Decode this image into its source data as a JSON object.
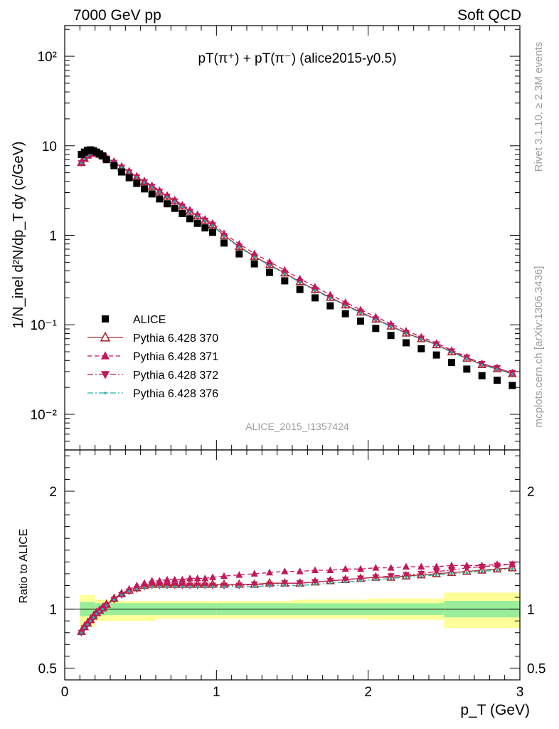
{
  "header": {
    "left": "7000 GeV pp",
    "right": "Soft QCD"
  },
  "side_labels": {
    "rivet": "Rivet 3.1.10, ≥ 2.3M events",
    "mcplots": "mcplots.cern.ch [arXiv:1306.3436]"
  },
  "chart_data": {
    "type": "scatter",
    "title": "pT(π⁺) + pT(π⁻) (alice2015-y0.5)",
    "watermark": "ALICE_2015_I1357424",
    "xlabel": "p_T (GeV)",
    "ylabel": "1/N_inel d²N/dp_T dy (c/GeV)",
    "xlim": [
      0,
      3
    ],
    "ylim": [
      0.004,
      220
    ],
    "yscale": "log",
    "x_ticks": [
      "0",
      "1",
      "2",
      "3"
    ],
    "y_ticks": [
      "10⁻²",
      "10⁻¹",
      "1",
      "10",
      "10²"
    ],
    "legend_position": "left-middle",
    "x": [
      0.11,
      0.13,
      0.15,
      0.17,
      0.19,
      0.21,
      0.23,
      0.25,
      0.275,
      0.325,
      0.375,
      0.425,
      0.475,
      0.525,
      0.575,
      0.625,
      0.675,
      0.725,
      0.775,
      0.825,
      0.875,
      0.925,
      0.975,
      1.05,
      1.15,
      1.25,
      1.35,
      1.45,
      1.55,
      1.65,
      1.75,
      1.85,
      1.95,
      2.05,
      2.15,
      2.25,
      2.35,
      2.45,
      2.55,
      2.65,
      2.75,
      2.85,
      2.95
    ],
    "series": [
      {
        "name": "ALICE",
        "color": "#000000",
        "marker": "square",
        "values": [
          8.0,
          8.5,
          8.9,
          9.0,
          8.8,
          8.5,
          8.1,
          7.7,
          7.0,
          6.0,
          5.1,
          4.4,
          3.8,
          3.3,
          2.9,
          2.55,
          2.25,
          2.0,
          1.75,
          1.53,
          1.36,
          1.21,
          1.08,
          0.82,
          0.62,
          0.48,
          0.385,
          0.31,
          0.248,
          0.2,
          0.163,
          0.133,
          0.11,
          0.091,
          0.076,
          0.063,
          0.054,
          0.046,
          0.038,
          0.032,
          0.027,
          0.024,
          0.021
        ],
        "band_x": [
          0.1,
          0.2,
          0.3,
          0.6,
          1.0,
          1.5,
          2.0,
          2.5,
          3.0
        ],
        "band_stat": [
          [
            0.94,
            1.06
          ],
          [
            0.95,
            1.05
          ],
          [
            0.95,
            1.05
          ],
          [
            0.95,
            1.05
          ],
          [
            0.95,
            1.05
          ],
          [
            0.95,
            1.05
          ],
          [
            0.95,
            1.05
          ],
          [
            0.93,
            1.07
          ]
        ],
        "band_syst": [
          [
            0.85,
            1.12
          ],
          [
            0.9,
            1.08
          ],
          [
            0.9,
            1.07
          ],
          [
            0.92,
            1.07
          ],
          [
            0.92,
            1.07
          ],
          [
            0.92,
            1.08
          ],
          [
            0.91,
            1.09
          ],
          [
            0.84,
            1.14
          ]
        ]
      },
      {
        "name": "Pythia 6.428 370",
        "color": "#a52a2a",
        "marker": "open-triangle-up",
        "line": "solid",
        "ratio": [
          0.81,
          0.85,
          0.88,
          0.91,
          0.94,
          0.97,
          0.99,
          1.01,
          1.04,
          1.09,
          1.13,
          1.16,
          1.18,
          1.2,
          1.21,
          1.21,
          1.21,
          1.21,
          1.21,
          1.21,
          1.21,
          1.21,
          1.21,
          1.21,
          1.21,
          1.21,
          1.22,
          1.22,
          1.22,
          1.23,
          1.24,
          1.25,
          1.26,
          1.27,
          1.27,
          1.28,
          1.29,
          1.3,
          1.31,
          1.32,
          1.33,
          1.34,
          1.35
        ]
      },
      {
        "name": "Pythia 6.428 371",
        "color": "#c2185b",
        "marker": "filled-triangle-up",
        "line": "dashed",
        "ratio": [
          0.81,
          0.85,
          0.88,
          0.91,
          0.94,
          0.97,
          0.99,
          1.01,
          1.04,
          1.09,
          1.13,
          1.17,
          1.2,
          1.22,
          1.24,
          1.24,
          1.25,
          1.25,
          1.25,
          1.26,
          1.26,
          1.26,
          1.27,
          1.28,
          1.29,
          1.3,
          1.31,
          1.32,
          1.32,
          1.33,
          1.33,
          1.34,
          1.34,
          1.35,
          1.35,
          1.36,
          1.36,
          1.36,
          1.37,
          1.37,
          1.37,
          1.38,
          1.38
        ]
      },
      {
        "name": "Pythia 6.428 372",
        "color": "#c2185b",
        "marker": "filled-triangle-down",
        "line": "dashdot",
        "ratio": [
          0.8,
          0.84,
          0.87,
          0.9,
          0.93,
          0.96,
          0.98,
          1.0,
          1.03,
          1.08,
          1.12,
          1.15,
          1.17,
          1.19,
          1.2,
          1.2,
          1.2,
          1.2,
          1.2,
          1.2,
          1.2,
          1.2,
          1.2,
          1.2,
          1.2,
          1.21,
          1.21,
          1.22,
          1.22,
          1.23,
          1.24,
          1.25,
          1.26,
          1.27,
          1.28,
          1.29,
          1.3,
          1.32,
          1.33,
          1.35,
          1.36,
          1.37,
          1.38
        ]
      },
      {
        "name": "Pythia 6.428 376",
        "color": "#20b2aa",
        "marker": "dot",
        "line": "dashdot",
        "ratio": [
          0.8,
          0.84,
          0.87,
          0.9,
          0.93,
          0.96,
          0.98,
          1.0,
          1.03,
          1.08,
          1.12,
          1.15,
          1.17,
          1.18,
          1.19,
          1.19,
          1.19,
          1.19,
          1.19,
          1.19,
          1.19,
          1.19,
          1.19,
          1.19,
          1.19,
          1.19,
          1.2,
          1.2,
          1.2,
          1.21,
          1.22,
          1.23,
          1.24,
          1.25,
          1.26,
          1.27,
          1.28,
          1.29,
          1.3,
          1.31,
          1.32,
          1.33,
          1.34
        ]
      }
    ],
    "ratio_panel": {
      "ylabel": "Ratio to ALICE",
      "ylim": [
        0.4,
        2.35
      ],
      "y_ticks": [
        "0.5",
        "1",
        "2"
      ],
      "y_tick_values": [
        0.5,
        1,
        2
      ]
    }
  }
}
